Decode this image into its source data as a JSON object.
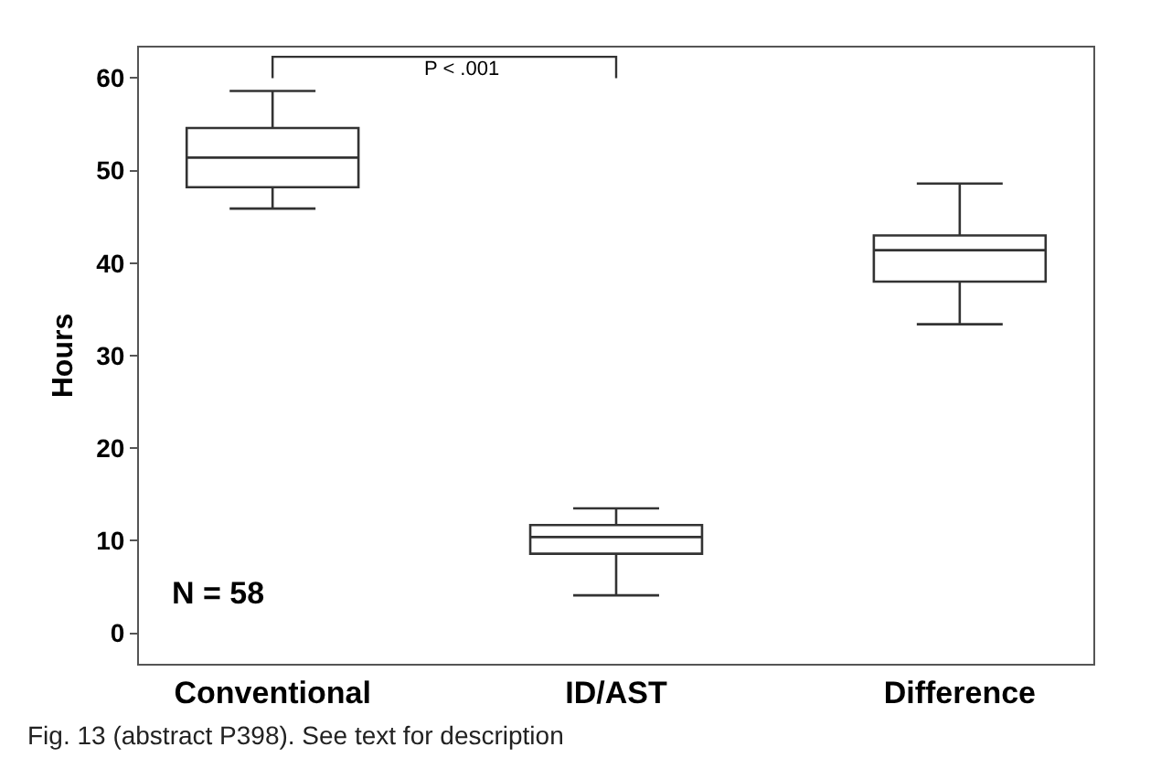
{
  "chart_data": {
    "type": "box",
    "ylabel": "Hours",
    "categories": [
      "Conventional",
      "ID/AST",
      "Difference"
    ],
    "boxes": [
      {
        "low": 45.9,
        "q1": 48.2,
        "median": 51.4,
        "q3": 54.6,
        "high": 58.6
      },
      {
        "low": 4.1,
        "q1": 8.6,
        "median": 10.4,
        "q3": 11.7,
        "high": 13.5
      },
      {
        "low": 33.4,
        "q1": 38.0,
        "median": 41.4,
        "q3": 43.0,
        "high": 48.6
      }
    ],
    "color": "#333333",
    "ylim": [
      -3.3,
      63.3
    ],
    "yticks": [
      0,
      10,
      20,
      30,
      40,
      50,
      60
    ],
    "grid": false,
    "annotations": [
      "P < .001",
      "N = 58",
      "Fig. 13 (abstract P398). See text for description"
    ]
  }
}
